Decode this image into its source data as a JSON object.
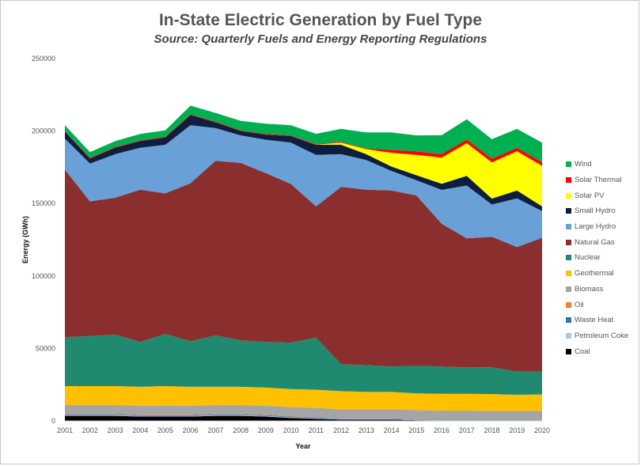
{
  "chart_data": {
    "type": "area",
    "stacked": true,
    "title": "In-State Electric Generation by Fuel Type",
    "subtitle": "Source: Quarterly Fuels and Energy Reporting Regulations",
    "xlabel": "Year",
    "ylabel": "Energy (GWh)",
    "ylim": [
      0,
      250000
    ],
    "yticks": [
      "0",
      "50000",
      "100000",
      "150000",
      "200000",
      "250000"
    ],
    "grid": false,
    "legend_position": "right",
    "x": [
      2001,
      2002,
      2003,
      2004,
      2005,
      2006,
      2007,
      2008,
      2009,
      2010,
      2011,
      2012,
      2013,
      2014,
      2015,
      2016,
      2017,
      2018,
      2019,
      2020
    ],
    "series": [
      {
        "name": "Coal",
        "color": "#000000",
        "values": [
          3500,
          3500,
          3500,
          3000,
          3000,
          3000,
          3500,
          3500,
          3000,
          2000,
          1500,
          1000,
          1000,
          1000,
          500,
          300,
          300,
          300,
          300,
          300
        ]
      },
      {
        "name": "Petroleum Coke",
        "color": "#a9c4e6",
        "values": [
          500,
          500,
          500,
          500,
          500,
          500,
          500,
          500,
          500,
          500,
          500,
          500,
          500,
          500,
          500,
          300,
          300,
          300,
          300,
          300
        ]
      },
      {
        "name": "Waste Heat",
        "color": "#2e75b6",
        "values": [
          500,
          500,
          500,
          500,
          500,
          500,
          500,
          500,
          500,
          500,
          500,
          300,
          300,
          300,
          300,
          300,
          300,
          300,
          300,
          300
        ]
      },
      {
        "name": "Oil",
        "color": "#ed7d31",
        "values": [
          200,
          200,
          200,
          200,
          200,
          200,
          200,
          200,
          200,
          200,
          200,
          100,
          100,
          100,
          100,
          100,
          100,
          100,
          100,
          100
        ]
      },
      {
        "name": "Biomass",
        "color": "#a5a5a5",
        "values": [
          6300,
          6300,
          6300,
          6300,
          6300,
          6300,
          6300,
          6300,
          6300,
          6300,
          6300,
          6100,
          6100,
          6100,
          6100,
          6100,
          6100,
          6000,
          6000,
          6000
        ]
      },
      {
        "name": "Geothermal",
        "color": "#ffc000",
        "values": [
          13000,
          13000,
          13000,
          13000,
          13500,
          13000,
          12500,
          12500,
          12500,
          12500,
          12500,
          12500,
          12000,
          12000,
          11500,
          11600,
          11600,
          11500,
          11000,
          11300
        ]
      },
      {
        "name": "Nuclear",
        "color": "#1f8a70",
        "values": [
          33800,
          34500,
          35500,
          31000,
          36000,
          31500,
          35500,
          32000,
          31500,
          32000,
          36000,
          18600,
          18500,
          17500,
          19000,
          18800,
          18200,
          18500,
          16000,
          15700
        ]
      },
      {
        "name": "Natural Gas",
        "color": "#8b2e2e",
        "values": [
          115500,
          93000,
          94500,
          105000,
          97000,
          109000,
          120500,
          122500,
          116500,
          109500,
          90500,
          122400,
          121000,
          121500,
          117500,
          98500,
          89100,
          90000,
          86000,
          92300
        ]
      },
      {
        "name": "Large Hydro",
        "color": "#6aa0d8",
        "values": [
          21500,
          26000,
          30000,
          29000,
          33500,
          40000,
          22500,
          19000,
          23000,
          28500,
          35500,
          22500,
          20500,
          13500,
          10500,
          23400,
          36400,
          22300,
          33500,
          18500
        ]
      },
      {
        "name": "Small Hydro",
        "color": "#0d1f3c",
        "values": [
          4700,
          3500,
          4500,
          4500,
          5000,
          7000,
          4000,
          3000,
          3500,
          4500,
          7000,
          6500,
          4000,
          3000,
          3500,
          4200,
          6700,
          4100,
          5500,
          3200
        ]
      },
      {
        "name": "Solar PV",
        "color": "#ffff00",
        "values": [
          0,
          0,
          0,
          0,
          0,
          0,
          0,
          0,
          0,
          0,
          100,
          1500,
          3500,
          9500,
          14000,
          18000,
          22500,
          25000,
          27000,
          28000
        ]
      },
      {
        "name": "Solar Thermal",
        "color": "#ff0000",
        "values": [
          500,
          500,
          500,
          500,
          500,
          500,
          500,
          500,
          500,
          500,
          500,
          500,
          500,
          2000,
          2500,
          2500,
          2500,
          2500,
          2500,
          2500
        ]
      },
      {
        "name": "Wind",
        "color": "#00b050",
        "values": [
          4000,
          4000,
          4000,
          4500,
          4500,
          6000,
          6000,
          6500,
          7000,
          7000,
          7000,
          9000,
          11000,
          12000,
          11000,
          13000,
          14000,
          13500,
          13000,
          13500
        ]
      }
    ]
  }
}
